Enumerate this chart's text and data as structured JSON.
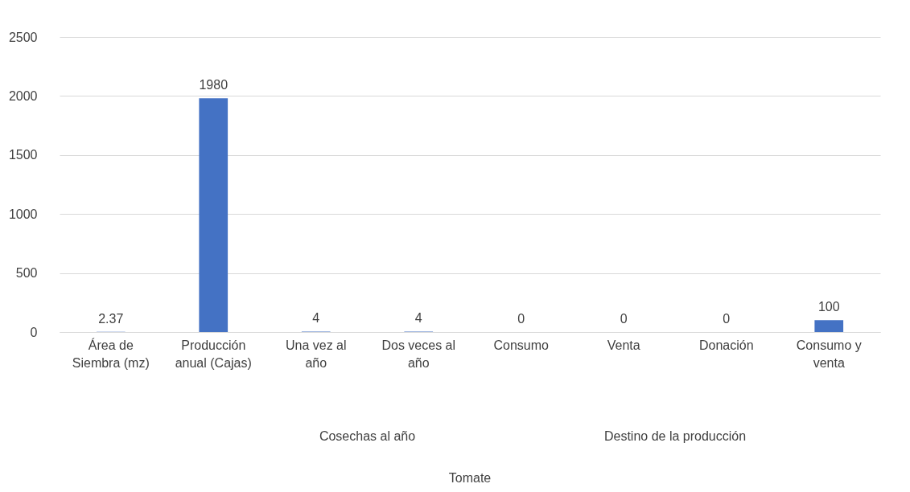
{
  "chart_data": {
    "type": "bar",
    "categories": [
      "Área de Siembra (mz)",
      "Producción anual (Cajas)",
      "Una vez al año",
      "Dos veces al año",
      "Consumo",
      "Venta",
      "Donación",
      "Consumo y venta"
    ],
    "values": [
      2.37,
      1980,
      4,
      4,
      0,
      0,
      0,
      100
    ],
    "color": "#4472c4",
    "data_labels": true,
    "annotations": [
      "Cosechas al año",
      "Destino de la producción",
      "Tomate"
    ],
    "ylim": [
      0,
      2500
    ],
    "yticks": [
      0,
      500,
      1000,
      1500,
      2000,
      2500
    ],
    "grid": "y"
  }
}
